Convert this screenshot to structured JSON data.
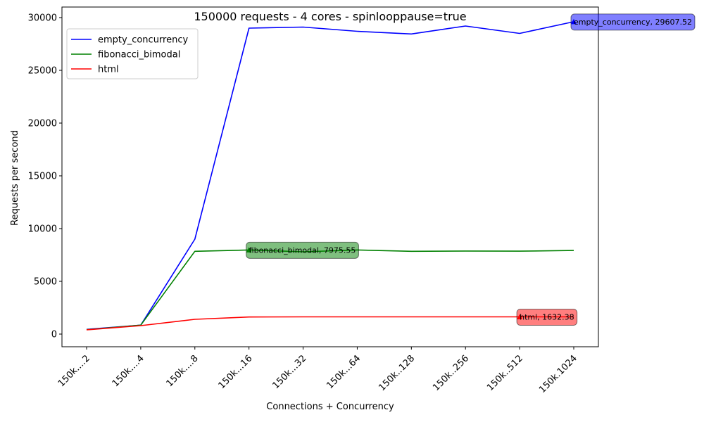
{
  "chart_data": {
    "type": "line",
    "title": "150000 requests - 4 cores - spinlooppause=true",
    "xlabel": "Connections + Concurrency",
    "ylabel": "Requests per second",
    "categories": [
      "150k....2",
      "150k....4",
      "150k....8",
      "150k...16",
      "150k...32",
      "150k...64",
      "150k..128",
      "150k..256",
      "150k..512",
      "150k.1024"
    ],
    "ylim": [
      -1200,
      31000
    ],
    "yticks": [
      0,
      5000,
      10000,
      15000,
      20000,
      25000,
      30000
    ],
    "legend_position": "top-left",
    "grid": false,
    "series": [
      {
        "name": "empty_concurrency",
        "color": "#0000ff",
        "values": [
          450,
          850,
          9000,
          29000,
          29100,
          28700,
          28450,
          29200,
          28500,
          29607.52
        ],
        "annotation": {
          "index": 9,
          "label": "empty_concurrency, 29607.52"
        }
      },
      {
        "name": "fibonacci_bimodal",
        "color": "#008000",
        "values": [
          420,
          850,
          7850,
          7975.55,
          7800,
          7975,
          7850,
          7870,
          7860,
          7930
        ],
        "annotation": {
          "index": 3,
          "label": "fibonacci_bimodal, 7975.55"
        }
      },
      {
        "name": "html",
        "color": "#ff0000",
        "values": [
          400,
          800,
          1400,
          1620,
          1632,
          1632,
          1632,
          1632,
          1632.38,
          1632
        ],
        "annotation": {
          "index": 8,
          "label": "html, 1632.38"
        }
      }
    ]
  }
}
